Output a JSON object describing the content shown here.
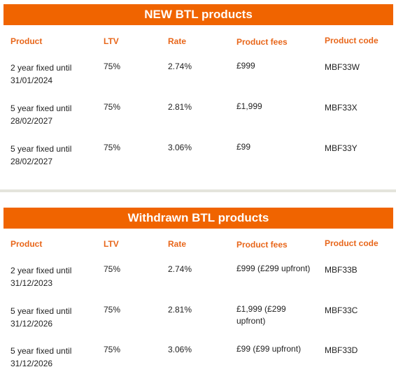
{
  "sections": [
    {
      "title": "NEW BTL products",
      "headers": {
        "product": "Product",
        "ltv": "LTV",
        "rate": "Rate",
        "fees": "Product fees",
        "code": "Product code"
      },
      "rows": [
        {
          "product": "2 year fixed until 31/01/2024",
          "ltv": "75%",
          "rate": "2.74%",
          "fees": "£999",
          "code": "MBF33W"
        },
        {
          "product": "5 year fixed until 28/02/2027",
          "ltv": "75%",
          "rate": "2.81%",
          "fees": "£1,999",
          "code": "MBF33X"
        },
        {
          "product": "5 year fixed until 28/02/2027",
          "ltv": "75%",
          "rate": "3.06%",
          "fees": "£99",
          "code": "MBF33Y"
        }
      ]
    },
    {
      "title": "Withdrawn BTL products",
      "headers": {
        "product": "Product",
        "ltv": "LTV",
        "rate": "Rate",
        "fees": "Product fees",
        "code": "Product code"
      },
      "rows": [
        {
          "product": "2 year fixed until 31/12/2023",
          "ltv": "75%",
          "rate": "2.74%",
          "fees": "£999 (£299 upfront)",
          "code": "MBF33B"
        },
        {
          "product": "5 year fixed until 31/12/2026",
          "ltv": "75%",
          "rate": "2.81%",
          "fees": "£1,999 (£299 upfront)",
          "code": "MBF33C"
        },
        {
          "product": "5 year fixed until 31/12/2026",
          "ltv": "75%",
          "rate": "3.06%",
          "fees": "£99 (£99 upfront)",
          "code": "MBF33D"
        }
      ]
    }
  ]
}
